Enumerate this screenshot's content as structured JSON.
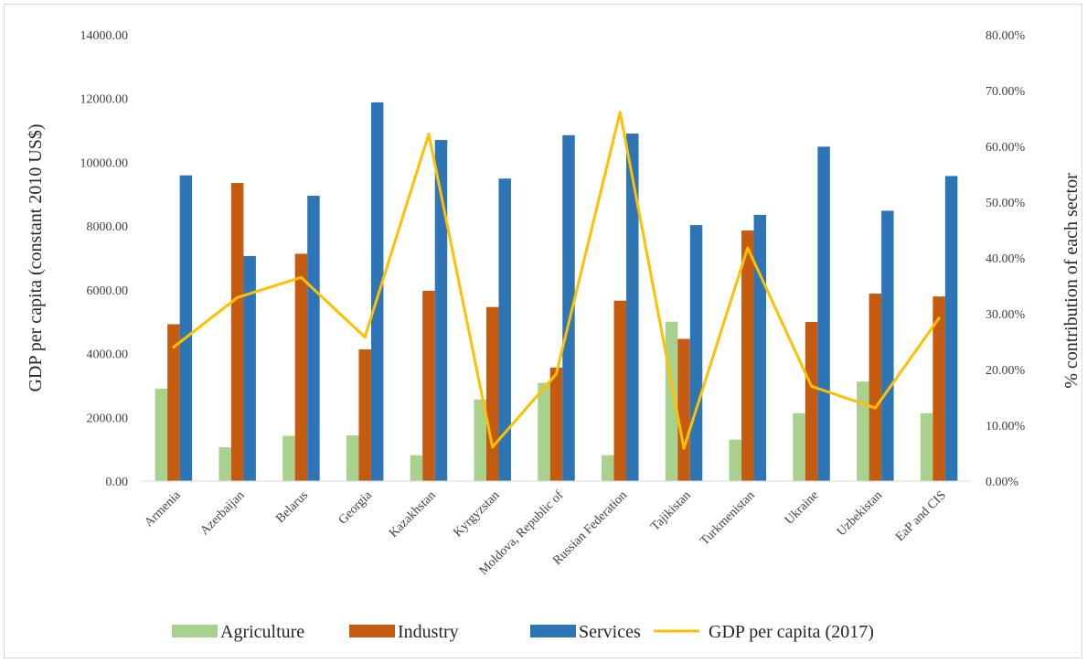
{
  "chart_data": {
    "type": "bar",
    "categories": [
      "Armenia",
      "Azerbaijan",
      "Belarus",
      "Georgia",
      "Kazakhstan",
      "Kyrgyzstan",
      "Moldova, Republic of",
      "Russian Federation",
      "Tajikistan",
      "Turkmenistan",
      "Ukraine",
      "Uzbekistan",
      "EaP and CIS"
    ],
    "ylabel": "GDP per capita (constant 2010 US$)",
    "y2label": "% contribution of each sector",
    "ylim": [
      0,
      14000
    ],
    "y2lim": [
      0,
      80
    ],
    "yticks": [
      "0.00",
      "2000.00",
      "4000.00",
      "6000.00",
      "8000.00",
      "10000.00",
      "12000.00",
      "14000.00"
    ],
    "y2ticks": [
      "0.00%",
      "10.00%",
      "20.00%",
      "30.00%",
      "40.00%",
      "50.00%",
      "60.00%",
      "70.00%",
      "80.00%"
    ],
    "grid": false,
    "legend_position": "bottom",
    "series": [
      {
        "name": "Agriculture",
        "type": "bar",
        "axis": "left",
        "color": "#a9d18e",
        "values": [
          2900,
          1060,
          1420,
          1430,
          810,
          2560,
          3080,
          810,
          5000,
          1300,
          2130,
          3120,
          2130
        ]
      },
      {
        "name": "Industry",
        "type": "bar",
        "axis": "left",
        "color": "#c55a11",
        "values": [
          4920,
          9350,
          7130,
          4130,
          5970,
          5460,
          3560,
          5660,
          4460,
          7860,
          4990,
          5880,
          5790
        ]
      },
      {
        "name": "Services",
        "type": "bar",
        "axis": "left",
        "color": "#2e75b6",
        "values": [
          9590,
          7060,
          8950,
          11880,
          10700,
          9490,
          10850,
          10900,
          8030,
          8350,
          10490,
          8480,
          9570
        ]
      },
      {
        "name": "GDP per capita (2017)",
        "type": "line",
        "axis": "right",
        "color": "#ffc000",
        "values": [
          24.0,
          32.9,
          36.5,
          25.8,
          62.2,
          6.1,
          19.2,
          66.1,
          5.9,
          41.8,
          17.0,
          13.1,
          29.2
        ]
      }
    ]
  }
}
